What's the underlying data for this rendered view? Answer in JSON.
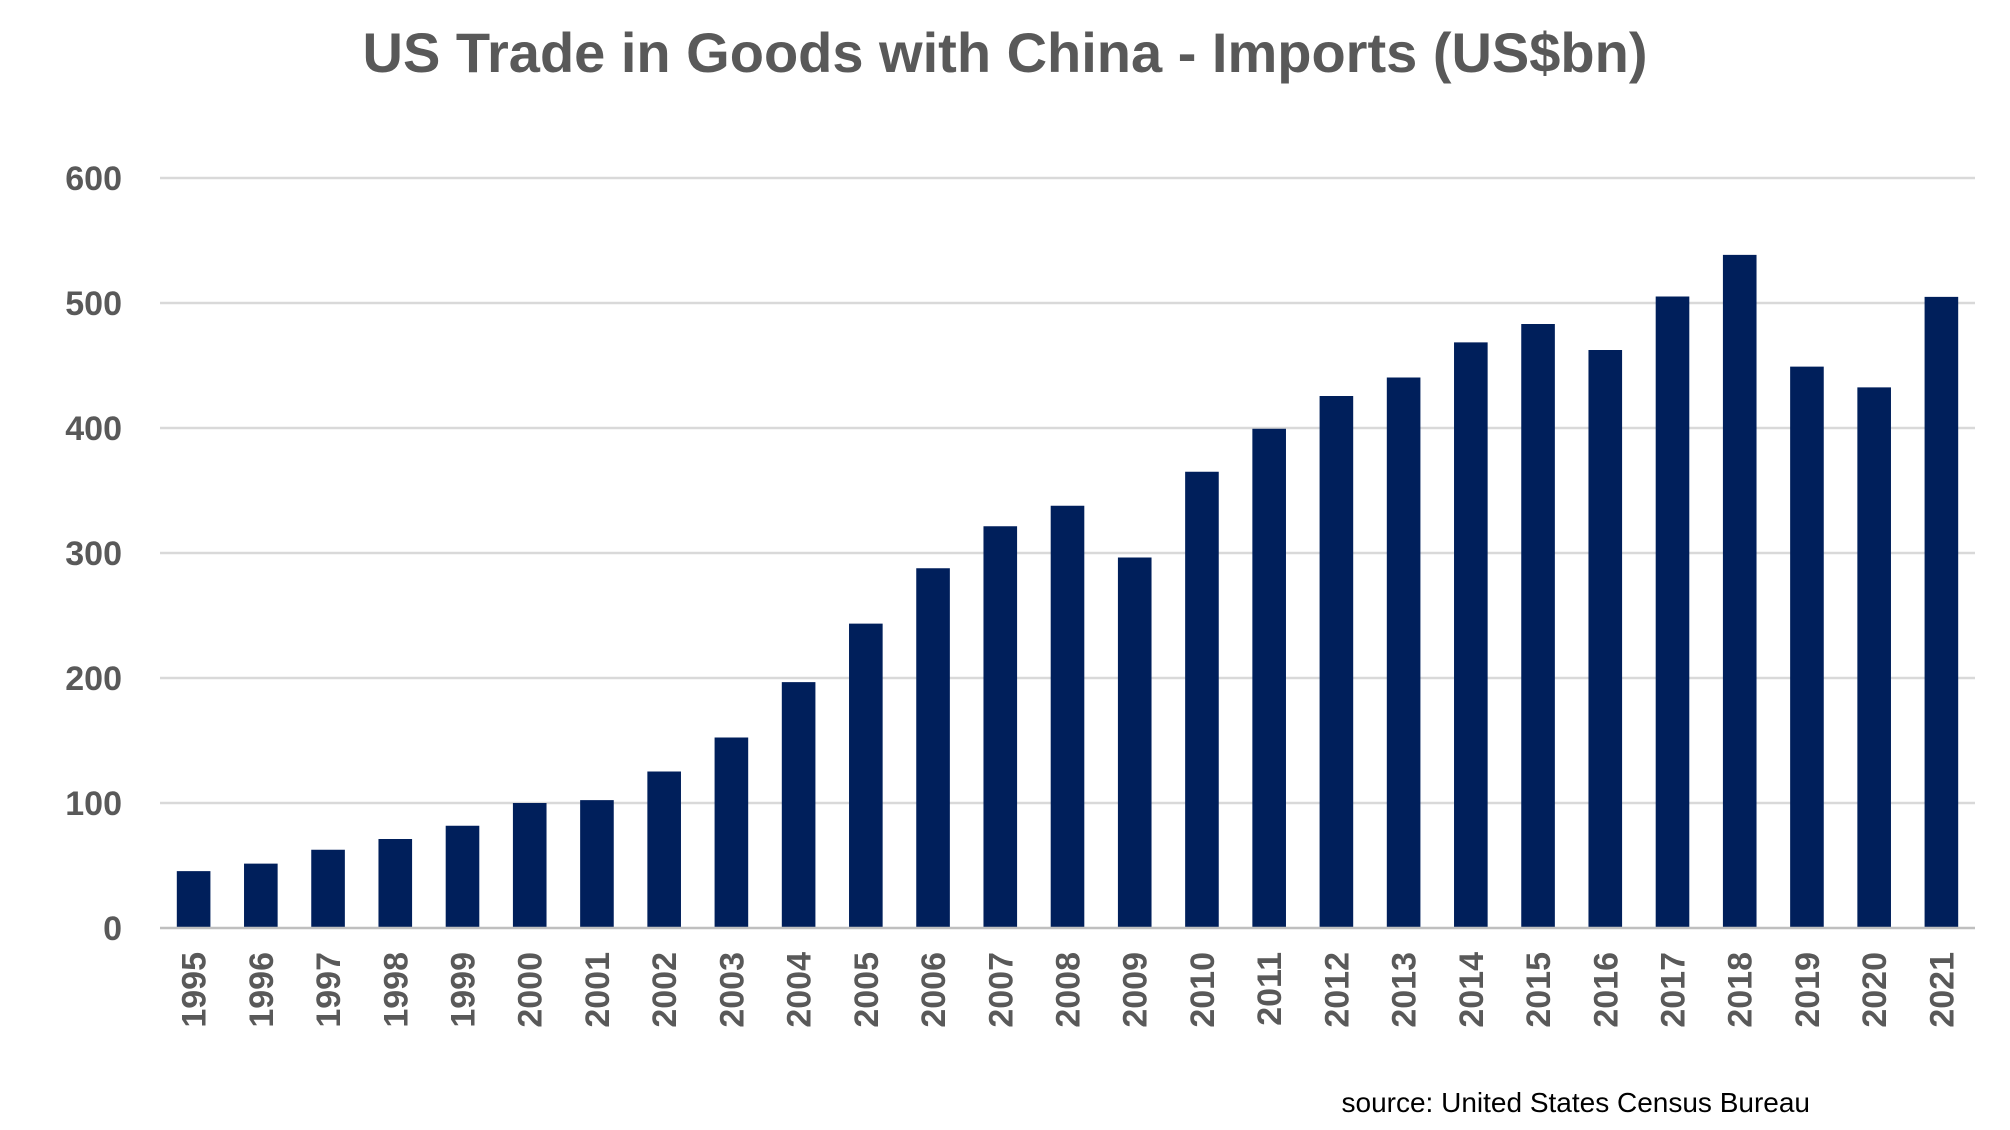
{
  "chart_data": {
    "type": "bar",
    "title": "US Trade in Goods with China - Imports (US$bn)",
    "xlabel": "",
    "ylabel": "",
    "categories": [
      "1995",
      "1996",
      "1997",
      "1998",
      "1999",
      "2000",
      "2001",
      "2002",
      "2003",
      "2004",
      "2005",
      "2006",
      "2007",
      "2008",
      "2009",
      "2010",
      "2011",
      "2012",
      "2013",
      "2014",
      "2015",
      "2016",
      "2017",
      "2018",
      "2019",
      "2020",
      "2021"
    ],
    "series": [
      {
        "name": "Imports",
        "values": [
          45.5,
          51.5,
          62.6,
          71.2,
          81.8,
          100.0,
          102.3,
          125.2,
          152.4,
          196.7,
          243.5,
          287.8,
          321.4,
          337.8,
          296.4,
          365.0,
          399.4,
          425.6,
          440.4,
          468.5,
          483.2,
          462.4,
          505.2,
          538.5,
          449.1,
          432.5,
          504.9
        ]
      }
    ],
    "ylim": [
      0,
      600
    ],
    "yticks": [
      0,
      100,
      200,
      300,
      400,
      500,
      600
    ],
    "grid": true,
    "legend": "none",
    "bar_color": "#001f5b",
    "source": "source: United States Census Bureau"
  }
}
